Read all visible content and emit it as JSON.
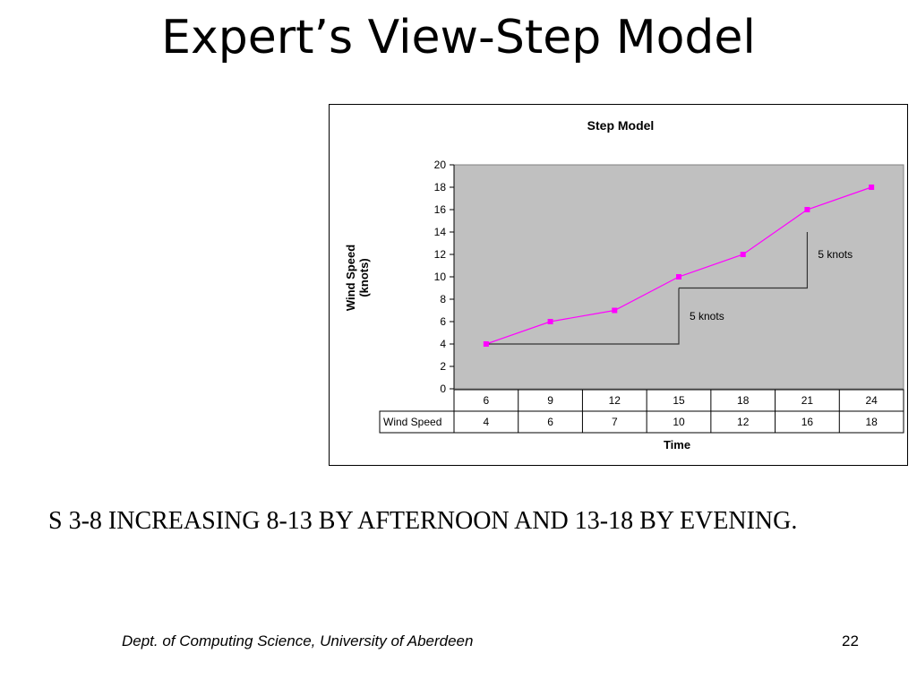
{
  "slide": {
    "title": "Expert’s View-Step Model",
    "body_text": "S 3-8 INCREASING 8-13 BY AFTERNOON AND 13-18 BY EVENING.",
    "footer_left": "Dept. of Computing Science, University of Aberdeen",
    "page_number": "22"
  },
  "chart_data": {
    "type": "line",
    "title": "Step Model",
    "xlabel": "Time",
    "ylabel": "Wind Speed (knots)",
    "ylim": [
      0,
      20
    ],
    "ytick_step": 2,
    "categories": [
      "6",
      "9",
      "12",
      "15",
      "18",
      "21",
      "24"
    ],
    "series": [
      {
        "name": "Wind Speed",
        "values": [
          4,
          6,
          7,
          10,
          12,
          16,
          18
        ]
      }
    ],
    "step_lines": [
      {
        "from_x": "6",
        "to_x": "15",
        "y_low": 4,
        "y_high": 9
      },
      {
        "from_x": "15",
        "to_x": "21",
        "y_low": 9,
        "y_high": 14
      }
    ],
    "annotations": [
      {
        "text": "5 knots",
        "x": "15",
        "y": 6.5
      },
      {
        "text": "5 knots",
        "x": "21",
        "y": 12
      }
    ],
    "grid": false,
    "plot_background": "#c0c0c0",
    "line_color": "#ff00ff",
    "data_table": true
  }
}
